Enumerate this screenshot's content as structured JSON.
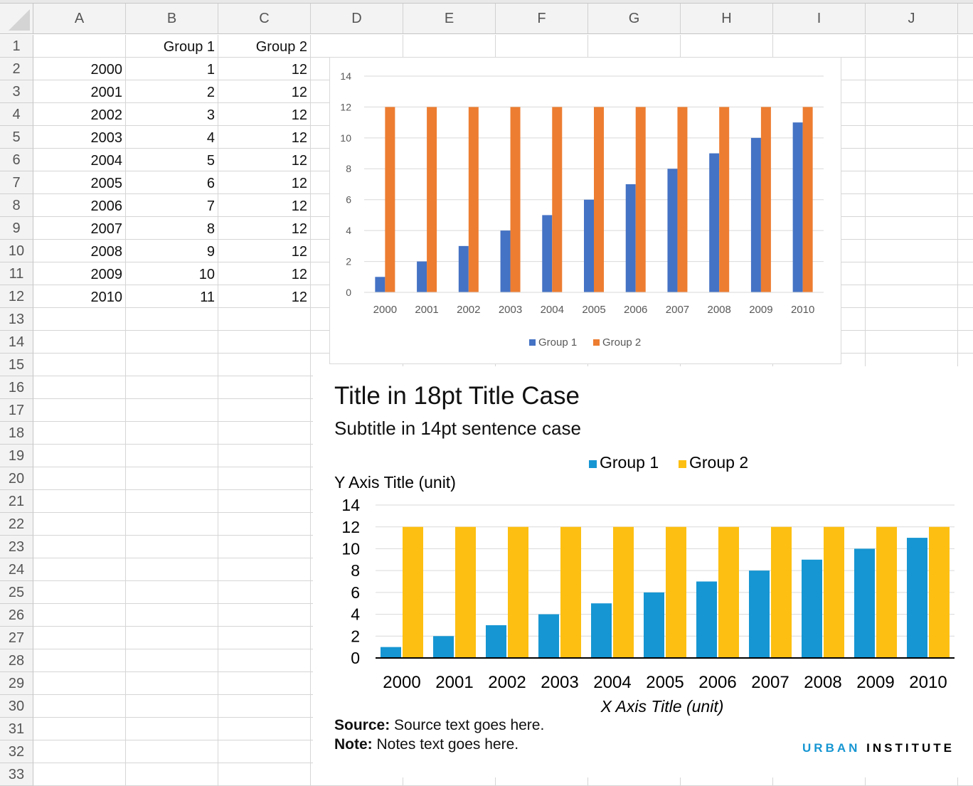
{
  "sheet": {
    "columns": [
      "A",
      "B",
      "C",
      "D",
      "E",
      "F",
      "G",
      "H",
      "I",
      "J"
    ],
    "row_numbers": [
      1,
      2,
      3,
      4,
      5,
      6,
      7,
      8,
      9,
      10,
      11,
      12,
      13,
      14,
      15,
      16,
      17,
      18,
      19,
      20,
      21,
      22,
      23,
      24,
      25,
      26,
      27,
      28,
      29,
      30,
      31,
      32,
      33
    ],
    "header_row": [
      "",
      "Group 1",
      "Group 2"
    ],
    "rows": [
      [
        "2000",
        "1",
        "12"
      ],
      [
        "2001",
        "2",
        "12"
      ],
      [
        "2002",
        "3",
        "12"
      ],
      [
        "2003",
        "4",
        "12"
      ],
      [
        "2004",
        "5",
        "12"
      ],
      [
        "2005",
        "6",
        "12"
      ],
      [
        "2006",
        "7",
        "12"
      ],
      [
        "2007",
        "8",
        "12"
      ],
      [
        "2008",
        "9",
        "12"
      ],
      [
        "2009",
        "10",
        "12"
      ],
      [
        "2010",
        "11",
        "12"
      ]
    ]
  },
  "chart_data": [
    {
      "type": "bar",
      "categories": [
        "2000",
        "2001",
        "2002",
        "2003",
        "2004",
        "2005",
        "2006",
        "2007",
        "2008",
        "2009",
        "2010"
      ],
      "series": [
        {
          "name": "Group 1",
          "values": [
            1,
            2,
            3,
            4,
            5,
            6,
            7,
            8,
            9,
            10,
            11
          ],
          "color": "#4472c4"
        },
        {
          "name": "Group 2",
          "values": [
            12,
            12,
            12,
            12,
            12,
            12,
            12,
            12,
            12,
            12,
            12
          ],
          "color": "#ed7d31"
        }
      ],
      "ylim": [
        0,
        14
      ],
      "yticks": [
        "0",
        "2",
        "4",
        "6",
        "8",
        "10",
        "12",
        "14"
      ],
      "grid": true,
      "legend": "bottom"
    },
    {
      "type": "bar",
      "title": "Title in 18pt Title Case",
      "subtitle": "Subtitle in 14pt sentence case",
      "xlabel": "X Axis Title (unit)",
      "ylabel": "Y Axis Title (unit)",
      "categories": [
        "2000",
        "2001",
        "2002",
        "2003",
        "2004",
        "2005",
        "2006",
        "2007",
        "2008",
        "2009",
        "2010"
      ],
      "series": [
        {
          "name": "Group 1",
          "values": [
            1,
            2,
            3,
            4,
            5,
            6,
            7,
            8,
            9,
            10,
            11
          ],
          "color": "#1696d2"
        },
        {
          "name": "Group 2",
          "values": [
            12,
            12,
            12,
            12,
            12,
            12,
            12,
            12,
            12,
            12,
            12
          ],
          "color": "#fdbf11"
        }
      ],
      "ylim": [
        0,
        14
      ],
      "yticks": [
        "0",
        "2",
        "4",
        "6",
        "8",
        "10",
        "12",
        "14"
      ],
      "grid": true,
      "legend": "top",
      "source_label": "Source:",
      "source_text": " Source text goes here.",
      "note_label": "Note:",
      "note_text": " Notes text goes here.",
      "logo": {
        "part1": "URBAN",
        "part2": "INSTITUTE"
      }
    }
  ]
}
